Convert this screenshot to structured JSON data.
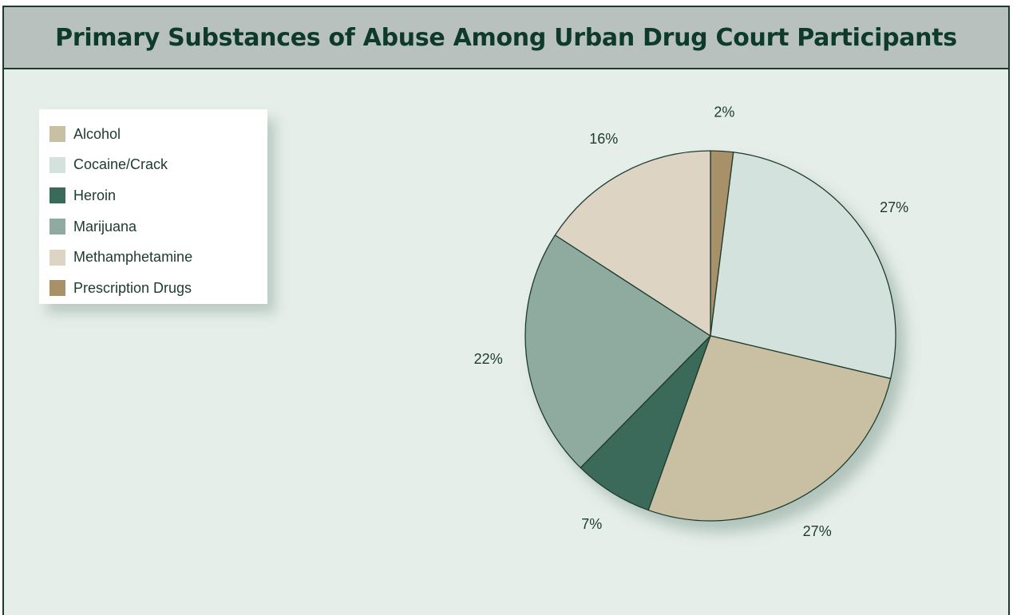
{
  "title": "Primary Substances of Abuse Among Urban Drug Court Participants",
  "colors": {
    "frame_border": "#1e3a2f",
    "background": "#e6eeea",
    "title_bar": "#b8c1be",
    "title_text": "#0d3a2a"
  },
  "legend": {
    "placement": "top-left",
    "items": [
      {
        "label": "Alcohol",
        "color": "#c9bfa3"
      },
      {
        "label": "Cocaine/Crack",
        "color": "#d3e2dc"
      },
      {
        "label": "Heroin",
        "color": "#3a6a5a"
      },
      {
        "label": "Marijuana",
        "color": "#8faa9f"
      },
      {
        "label": "Methamphetamine",
        "color": "#ddd4c4"
      },
      {
        "label": "Prescription Drugs",
        "color": "#a89068"
      }
    ]
  },
  "chart_data": {
    "type": "pie",
    "title": "Primary Substances of Abuse Among Urban Drug Court Participants",
    "start": "12 o'clock",
    "direction": "clockwise",
    "slices": [
      {
        "name": "Prescription Drugs",
        "value": 2,
        "label": "2%",
        "color": "#a89068"
      },
      {
        "name": "Cocaine/Crack",
        "value": 27,
        "label": "27%",
        "color": "#d3e2dc"
      },
      {
        "name": "Alcohol",
        "value": 27,
        "label": "27%",
        "color": "#c9bfa3"
      },
      {
        "name": "Heroin",
        "value": 7,
        "label": "7%",
        "color": "#3a6a5a"
      },
      {
        "name": "Marijuana",
        "value": 22,
        "label": "22%",
        "color": "#8faa9f"
      },
      {
        "name": "Methamphetamine",
        "value": 16,
        "label": "16%",
        "color": "#ddd4c4"
      }
    ]
  }
}
